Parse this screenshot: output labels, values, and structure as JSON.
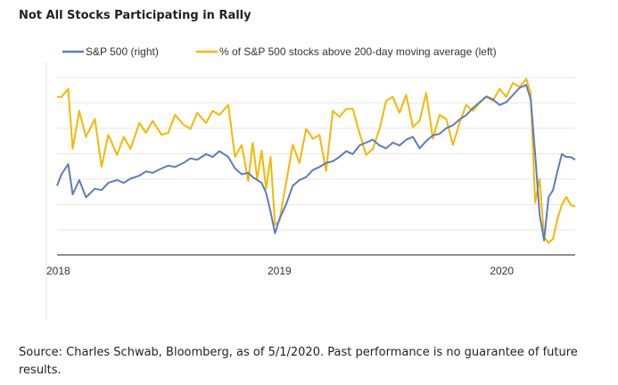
{
  "header": {
    "title": "Not All Stocks Participating in Rally"
  },
  "footer": {
    "source": "Source: Charles Schwab, Bloomberg, as of 5/1/2020. Past performance is no guarantee of future results."
  },
  "chart_data": {
    "type": "line",
    "title": "Not All Stocks Participating in Rally",
    "xlabel": "",
    "ylabel": "",
    "x_tick_labels": [
      "2018",
      "2019",
      "2020"
    ],
    "x_range": [
      2018.0,
      2020.33
    ],
    "grid": true,
    "legend": "top",
    "colors": {
      "sp500": "#5b7dc0",
      "breadth": "#f5b800"
    },
    "series": [
      {
        "name": "S&P 500 (right)",
        "x": [
          2018.0,
          2018.02,
          2018.05,
          2018.07,
          2018.1,
          2018.13,
          2018.17,
          2018.2,
          2018.23,
          2018.27,
          2018.3,
          2018.33,
          2018.37,
          2018.4,
          2018.43,
          2018.47,
          2018.5,
          2018.53,
          2018.57,
          2018.6,
          2018.63,
          2018.67,
          2018.7,
          2018.73,
          2018.77,
          2018.8,
          2018.83,
          2018.86,
          2018.88,
          2018.9,
          2018.92,
          2018.94,
          2018.96,
          2018.98,
          2019.0,
          2019.03,
          2019.06,
          2019.09,
          2019.12,
          2019.15,
          2019.18,
          2019.21,
          2019.24,
          2019.27,
          2019.3,
          2019.33,
          2019.36,
          2019.39,
          2019.42,
          2019.45,
          2019.48,
          2019.51,
          2019.54,
          2019.57,
          2019.6,
          2019.63,
          2019.66,
          2019.69,
          2019.72,
          2019.75,
          2019.78,
          2019.81,
          2019.84,
          2019.87,
          2019.9,
          2019.93,
          2019.96,
          2019.99,
          2020.02,
          2020.05,
          2020.08,
          2020.11,
          2020.13,
          2020.15,
          2020.17,
          2020.19,
          2020.21,
          2020.23,
          2020.25,
          2020.27,
          2020.29,
          2020.31,
          2020.33
        ],
        "values": [
          2680,
          2760,
          2830,
          2620,
          2720,
          2600,
          2660,
          2650,
          2700,
          2720,
          2700,
          2730,
          2750,
          2780,
          2770,
          2800,
          2820,
          2810,
          2840,
          2870,
          2860,
          2900,
          2880,
          2920,
          2880,
          2800,
          2760,
          2770,
          2740,
          2720,
          2700,
          2630,
          2500,
          2350,
          2450,
          2550,
          2680,
          2720,
          2740,
          2790,
          2810,
          2840,
          2850,
          2880,
          2920,
          2900,
          2960,
          2980,
          3000,
          2960,
          2940,
          2980,
          2960,
          3000,
          3020,
          2940,
          2990,
          3030,
          3040,
          3080,
          3100,
          3140,
          3170,
          3220,
          3260,
          3300,
          3280,
          3240,
          3260,
          3310,
          3360,
          3380,
          3280,
          2900,
          2480,
          2300,
          2600,
          2650,
          2780,
          2900,
          2880,
          2880,
          2860
        ]
      },
      {
        "name": "% of S&P 500 stocks above 200-day moving average (left)",
        "x": [
          2018.0,
          2018.02,
          2018.05,
          2018.07,
          2018.1,
          2018.13,
          2018.17,
          2018.2,
          2018.23,
          2018.27,
          2018.3,
          2018.33,
          2018.37,
          2018.4,
          2018.43,
          2018.47,
          2018.5,
          2018.53,
          2018.57,
          2018.6,
          2018.63,
          2018.67,
          2018.7,
          2018.73,
          2018.77,
          2018.8,
          2018.83,
          2018.86,
          2018.88,
          2018.9,
          2018.92,
          2018.94,
          2018.96,
          2018.98,
          2019.0,
          2019.03,
          2019.06,
          2019.09,
          2019.12,
          2019.15,
          2019.18,
          2019.21,
          2019.24,
          2019.27,
          2019.3,
          2019.33,
          2019.36,
          2019.39,
          2019.42,
          2019.45,
          2019.48,
          2019.51,
          2019.54,
          2019.57,
          2019.6,
          2019.63,
          2019.66,
          2019.69,
          2019.72,
          2019.75,
          2019.78,
          2019.81,
          2019.84,
          2019.87,
          2019.9,
          2019.93,
          2019.96,
          2019.99,
          2020.02,
          2020.05,
          2020.08,
          2020.11,
          2020.13,
          2020.15,
          2020.17,
          2020.19,
          2020.21,
          2020.23,
          2020.25,
          2020.27,
          2020.29,
          2020.31,
          2020.33
        ],
        "values": [
          79,
          79,
          83,
          53,
          72,
          59,
          68,
          44,
          60,
          50,
          59,
          53,
          66,
          61,
          67,
          60,
          61,
          70,
          65,
          63,
          71,
          66,
          72,
          70,
          75,
          49,
          55,
          37,
          56,
          38,
          52,
          33,
          49,
          15,
          17,
          36,
          55,
          46,
          63,
          58,
          60,
          42,
          72,
          69,
          73,
          73,
          61,
          50,
          53,
          63,
          77,
          79,
          71,
          80,
          64,
          67,
          81,
          58,
          70,
          68,
          55,
          66,
          75,
          72,
          76,
          79,
          77,
          83,
          79,
          86,
          84,
          88,
          81,
          26,
          38,
          9,
          6,
          8,
          18,
          25,
          29,
          25,
          24
        ]
      }
    ]
  }
}
